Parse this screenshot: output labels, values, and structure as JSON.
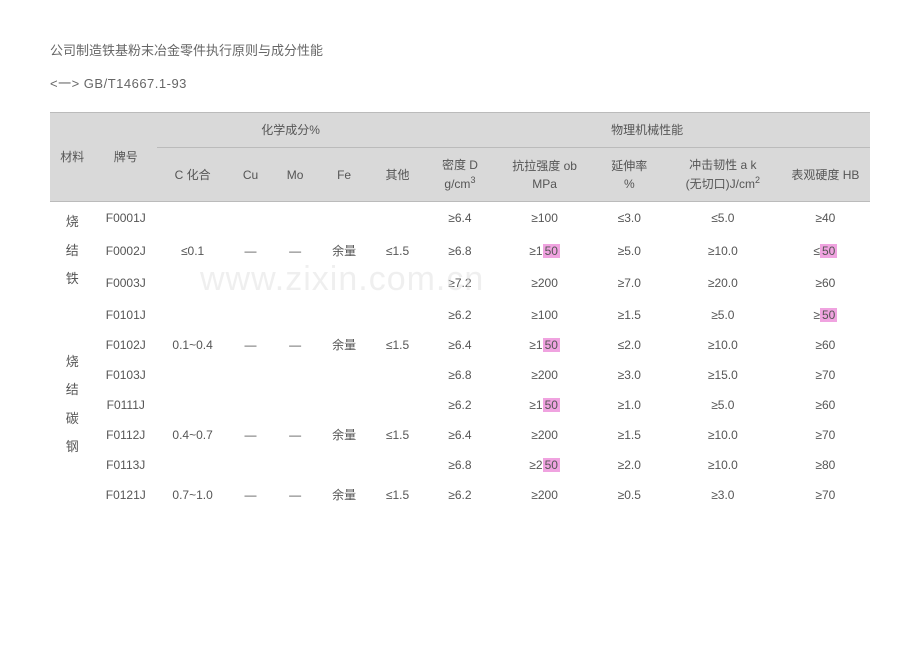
{
  "title": "公司制造铁基粉末冶金零件执行原则与成分性能",
  "subtitle": "<一>  GB/T14667.1-93",
  "watermark": "www.zixin.com.cn",
  "header": {
    "groupChem": "化学成分%",
    "groupMech": "物理机械性能",
    "material": "材料",
    "grade": "牌号",
    "cComb": "C 化合",
    "cu": "Cu",
    "mo": "Mo",
    "fe": "Fe",
    "other": "其他",
    "density_l1": "密度 D",
    "density_l2": "g/cm",
    "tensile_l1": "抗拉强度 ob",
    "tensile_l2": "MPa",
    "elong_l1": "延伸率",
    "elong_l2": "%",
    "impact_l1": "冲击韧性 a k",
    "impact_l2": "(无切口)J/cm",
    "hardness": "表观硬度 HB"
  },
  "materials": {
    "sinteredIron": "烧\n结\n铁",
    "sinteredCarbonSteel": "烧\n结\n碳\n钢"
  },
  "r1": {
    "grade": "F0001J",
    "c": "",
    "cu": "",
    "mo": "",
    "fe": "",
    "ot": "",
    "d": "≥6.4",
    "ts": "≥100",
    "el": "≤3.0",
    "im": "≤5.0",
    "hb": "≥40"
  },
  "r2": {
    "grade": "F0002J",
    "c": "≤0.1",
    "cu": "—",
    "mo": "—",
    "fe": "余量",
    "ot": "≤1.5",
    "d": "≥6.8",
    "ts_p": "≥1",
    "ts_hl": "50",
    "el": "≥5.0",
    "im": "≥10.0",
    "hb_p": "≤",
    "hb_hl": "50"
  },
  "r3": {
    "grade": "F0003J",
    "c": "",
    "cu": "",
    "mo": "",
    "fe": "",
    "ot": "",
    "d": "≥7.2",
    "ts": "≥200",
    "el": "≥7.0",
    "im": "≥20.0",
    "hb": "≥60"
  },
  "r4": {
    "grade": "F0101J",
    "c": "",
    "cu": "",
    "mo": "",
    "fe": "",
    "ot": "",
    "d": "≥6.2",
    "ts": "≥100",
    "el": "≥1.5",
    "im": "≥5.0",
    "hb_p": "≥",
    "hb_hl": "50"
  },
  "r5": {
    "grade": "F0102J",
    "c": "0.1~0.4",
    "cu": "—",
    "mo": "—",
    "fe": "余量",
    "ot": "≤1.5",
    "d": "≥6.4",
    "ts_p": "≥1",
    "ts_hl": "50",
    "el": "≤2.0",
    "im": "≥10.0",
    "hb": "≥60"
  },
  "r6": {
    "grade": "F0103J",
    "c": "",
    "cu": "",
    "mo": "",
    "fe": "",
    "ot": "",
    "d": "≥6.8",
    "ts": "≥200",
    "el": "≥3.0",
    "im": "≥15.0",
    "hb": "≥70"
  },
  "r7": {
    "grade": "F0111J",
    "c": "",
    "cu": "",
    "mo": "",
    "fe": "",
    "ot": "",
    "d": "≥6.2",
    "ts_p": "≥1",
    "ts_hl": "50",
    "el": "≥1.0",
    "im": "≥5.0",
    "hb": "≥60"
  },
  "r8": {
    "grade": "F0112J",
    "c": "0.4~0.7",
    "cu": "—",
    "mo": "—",
    "fe": "余量",
    "ot": "≤1.5",
    "d": "≥6.4",
    "ts": "≥200",
    "el": "≥1.5",
    "im": "≥10.0",
    "hb": "≥70"
  },
  "r9": {
    "grade": "F0113J",
    "c": "",
    "cu": "",
    "mo": "",
    "fe": "",
    "ot": "",
    "d": "≥6.8",
    "ts_p": "≥2",
    "ts_hl": "50",
    "el": "≥2.0",
    "im": "≥10.0",
    "hb": "≥80"
  },
  "r10": {
    "grade": "F0121J",
    "c": "0.7~1.0",
    "cu": "—",
    "mo": "—",
    "fe": "余量",
    "ot": "≤1.5",
    "d": "≥6.2",
    "ts": "≥200",
    "el": "≥0.5",
    "im": "≥3.0",
    "hb": "≥70"
  }
}
